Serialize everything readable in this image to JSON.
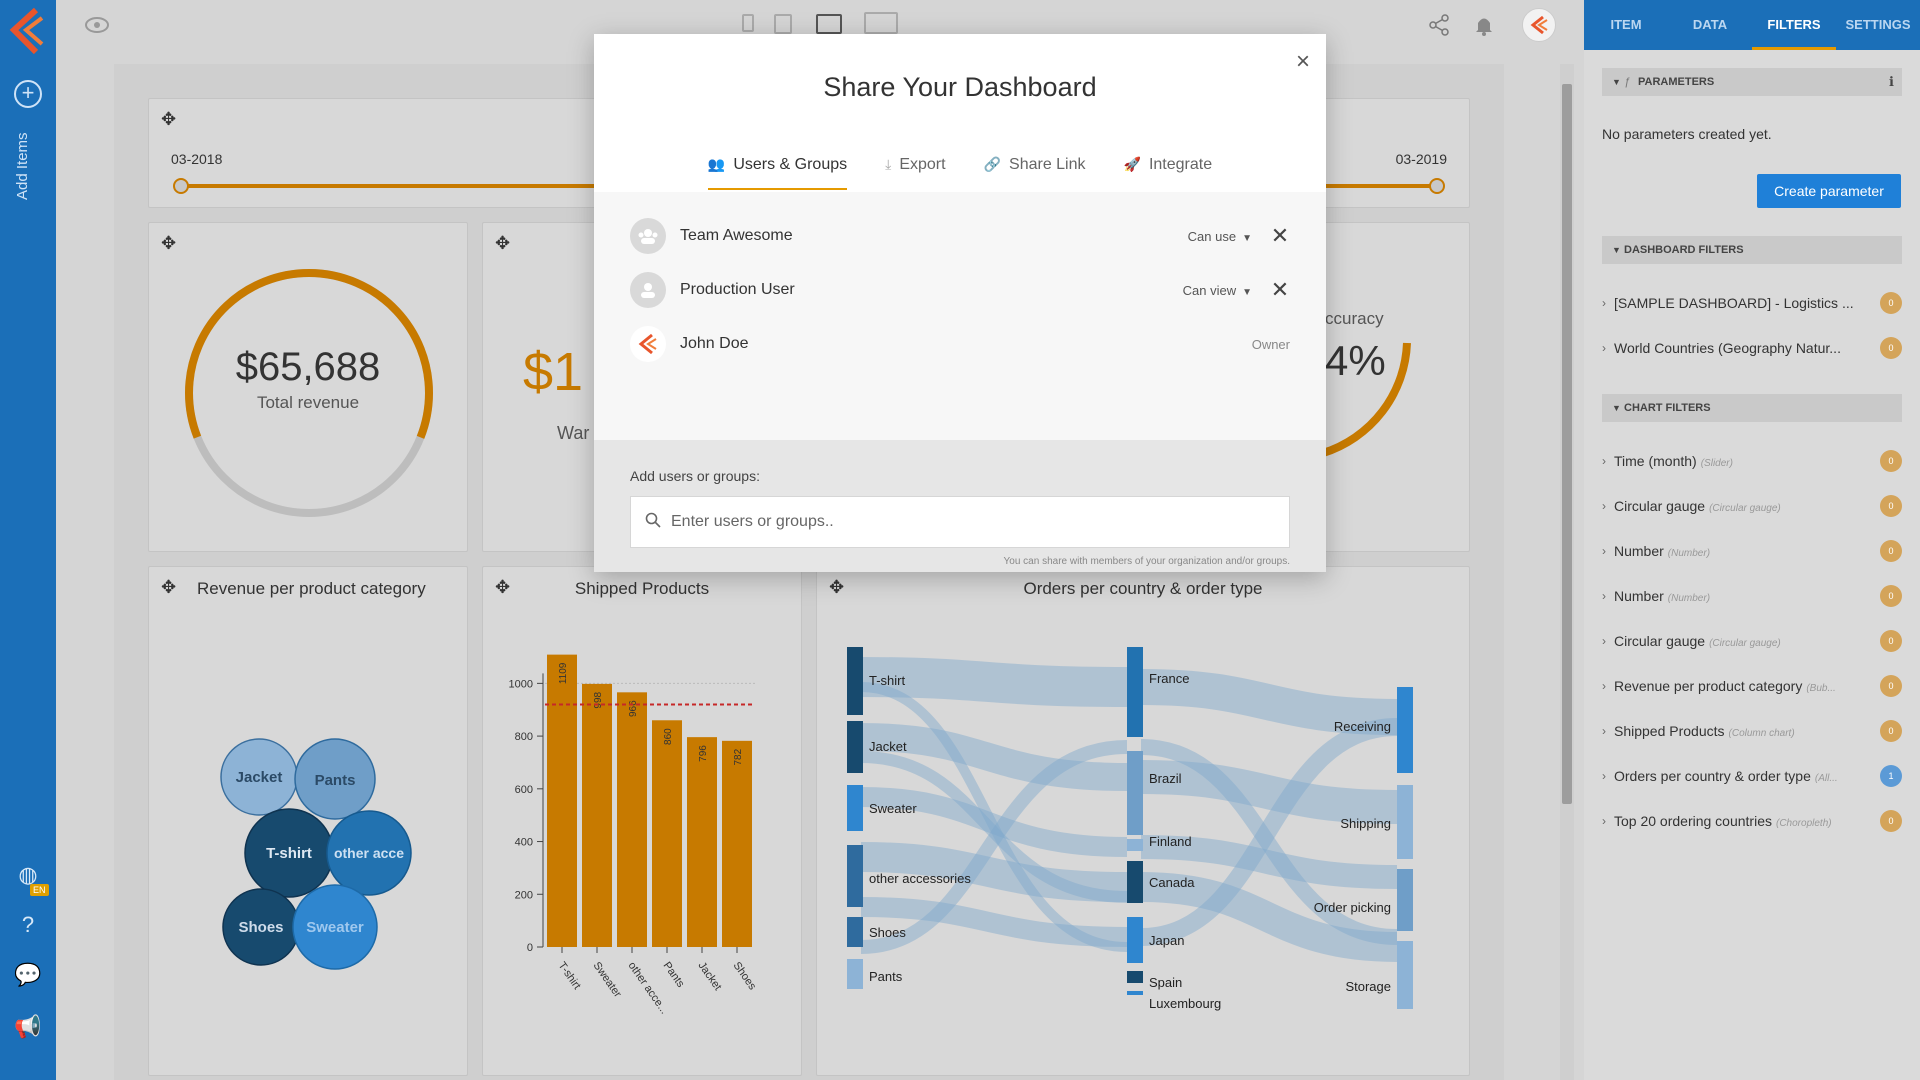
{
  "left_rail": {
    "add_items_label": "Add Items",
    "lang_badge": "EN"
  },
  "dashboard": {
    "slider": {
      "start": "03-2018",
      "end": "03-2019"
    },
    "gauge_revenue": {
      "value": "$65,688",
      "label": "Total revenue",
      "fill_fraction": 0.62
    },
    "number_card": {
      "value_partial": "$1",
      "label_partial": "War"
    },
    "gauge_accuracy": {
      "label_partial": "ccuracy",
      "value_partial": "4%"
    },
    "bubble_chart": {
      "title": "Revenue per product category",
      "bubbles": [
        "Jacket",
        "Pants",
        "T-shirt",
        "other acce",
        "Shoes",
        "Sweater"
      ]
    },
    "column_chart": {
      "title": "Shipped Products",
      "y_ticks": [
        "1000",
        "800",
        "600",
        "400",
        "200",
        "0"
      ]
    },
    "sankey": {
      "title": "Orders per country & order type",
      "left_nodes": [
        "T-shirt",
        "Jacket",
        "Sweater",
        "other accessories",
        "Shoes",
        "Pants"
      ],
      "mid_nodes": [
        "France",
        "Brazil",
        "Finland",
        "Canada",
        "Japan",
        "Spain",
        "Luxembourg"
      ],
      "right_nodes": [
        "Receiving",
        "Shipping",
        "Order picking",
        "Storage"
      ]
    }
  },
  "chart_data": {
    "type": "bar",
    "title": "Shipped Products",
    "categories": [
      "T-shirt",
      "Sweater",
      "other acce...",
      "Pants",
      "Jacket",
      "Shoes"
    ],
    "values": [
      1109,
      998,
      966,
      860,
      796,
      782
    ],
    "ylim": [
      0,
      1100
    ],
    "reference_line": 920,
    "colors": {
      "bar": "#c77a00",
      "ref": "#c62828"
    }
  },
  "modal": {
    "title": "Share Your Dashboard",
    "close_label": "×",
    "tabs": [
      {
        "label": "Users & Groups",
        "icon": "users-icon",
        "active": true
      },
      {
        "label": "Export",
        "icon": "download-icon",
        "active": false
      },
      {
        "label": "Share Link",
        "icon": "link-icon",
        "active": false
      },
      {
        "label": "Integrate",
        "icon": "rocket-icon",
        "active": false
      }
    ],
    "users": [
      {
        "name": "Team Awesome",
        "permission": "Can use",
        "type": "group"
      },
      {
        "name": "Production User",
        "permission": "Can view",
        "type": "user"
      },
      {
        "name": "John Doe",
        "permission": "Owner",
        "type": "owner"
      }
    ],
    "add_label": "Add users or groups:",
    "search_placeholder": "Enter users or groups..",
    "hint": "You can share with members of your organization and/or groups."
  },
  "right_panel": {
    "tabs": [
      "ITEM",
      "DATA",
      "FILTERS",
      "SETTINGS"
    ],
    "active_tab": "FILTERS",
    "parameters_header": "PARAMETERS",
    "no_params": "No parameters created yet.",
    "create_button": "Create parameter",
    "dashboard_filters_header": "DASHBOARD FILTERS",
    "dashboard_filters": [
      {
        "name": "[SAMPLE DASHBOARD] - Logistics ...",
        "count": "0"
      },
      {
        "name": "World Countries (Geography Natur...",
        "count": "0"
      }
    ],
    "chart_filters_header": "CHART FILTERS",
    "chart_filters": [
      {
        "name": "Time (month)",
        "type": "(Slider)",
        "count": "0"
      },
      {
        "name": "Circular gauge",
        "type": "(Circular gauge)",
        "count": "0"
      },
      {
        "name": "Number",
        "type": "(Number)",
        "count": "0"
      },
      {
        "name": "Number",
        "type": "(Number)",
        "count": "0"
      },
      {
        "name": "Circular gauge",
        "type": "(Circular gauge)",
        "count": "0"
      },
      {
        "name": "Revenue per product category",
        "type": "(Bub...",
        "count": "0"
      },
      {
        "name": "Shipped Products",
        "type": "(Column chart)",
        "count": "0"
      },
      {
        "name": "Orders per country & order type",
        "type": "(All...",
        "count": "1"
      },
      {
        "name": "Top 20 ordering countries",
        "type": "(Choropleth)",
        "count": "0"
      }
    ]
  }
}
